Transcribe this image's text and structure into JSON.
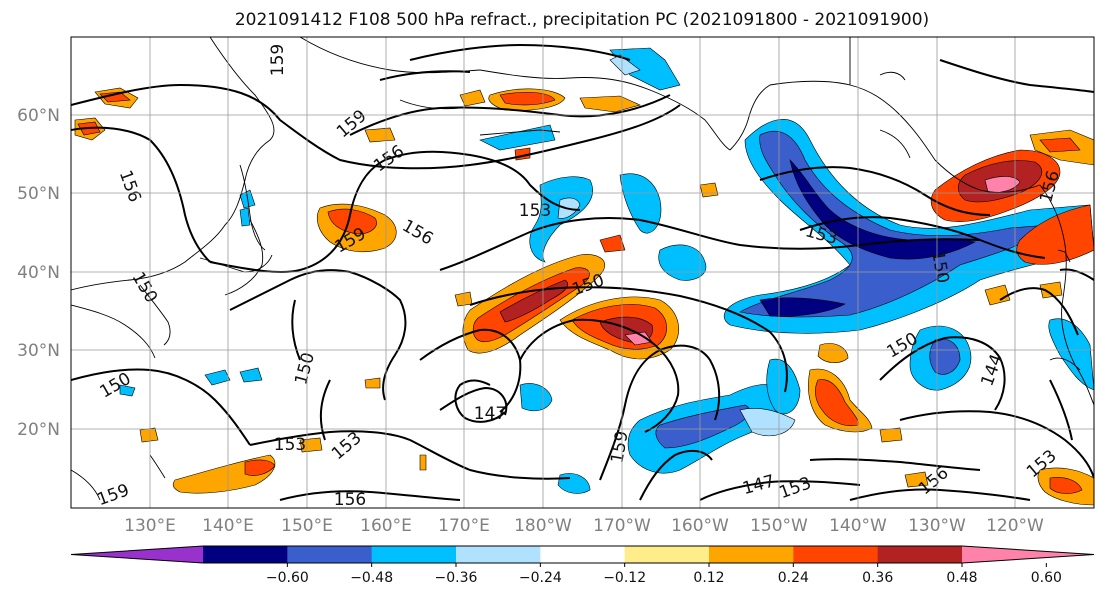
{
  "title": "2021091412 F108 500 hPa refract., precipitation PC (2021091800 - 2021091900)",
  "lat_ticks": [
    "60°N",
    "50°N",
    "40°N",
    "30°N",
    "20°N"
  ],
  "lon_ticks": [
    "130°E",
    "140°E",
    "150°E",
    "160°E",
    "170°E",
    "180°W",
    "170°W",
    "160°W",
    "150°W",
    "140°W",
    "130°W",
    "120°W"
  ],
  "colorbar": {
    "ticks": [
      "−0.60",
      "−0.48",
      "−0.36",
      "−0.24",
      "−0.12",
      "0.12",
      "0.24",
      "0.36",
      "0.48",
      "0.60"
    ],
    "colors": [
      "#9932cc",
      "#000080",
      "#3a5fcd",
      "#00bfff",
      "#b0e2ff",
      "#ffffff",
      "#ffec8b",
      "#ffa500",
      "#ff4500",
      "#b22222",
      "#ff82ab"
    ]
  },
  "contour_labels": [
    "159",
    "159",
    "156",
    "156",
    "156",
    "153",
    "153",
    "159",
    "150",
    "150",
    "147",
    "150",
    "150",
    "153",
    "153",
    "156",
    "159",
    "159",
    "150",
    "150",
    "144",
    "147",
    "153",
    "156",
    "153",
    "156"
  ],
  "shading_colors": {
    "dark_blue": "#000080",
    "blue": "#3a5fcd",
    "cyan": "#00bfff",
    "light_blue": "#b0e2ff",
    "yellow": "#ffec8b",
    "orange": "#ffa500",
    "red_orange": "#ff4500",
    "dark_red": "#b22222",
    "pink": "#ff82ab"
  }
}
